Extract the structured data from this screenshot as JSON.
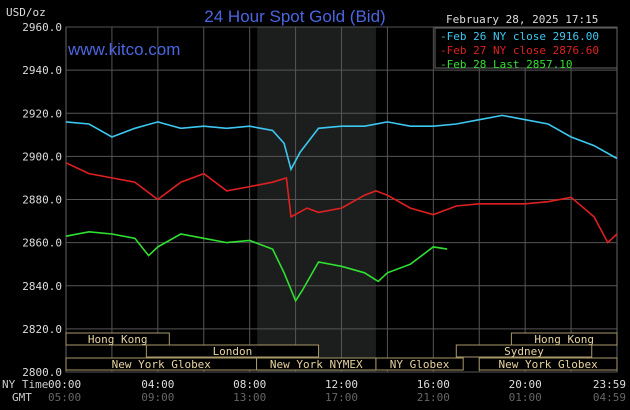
{
  "chart_data": {
    "type": "line",
    "title": "24 Hour Spot Gold (Bid)",
    "ylabel": "USD/oz",
    "website": "www.kitco.com",
    "timestamp": "February 28, 2025 17:15",
    "ylim": [
      2800,
      2960
    ],
    "yticks": [
      "2960.0",
      "2940.0",
      "2920.0",
      "2900.0",
      "2880.0",
      "2860.0",
      "2840.0",
      "2820.0",
      "2800.0"
    ],
    "ytick_values": [
      2960,
      2940,
      2920,
      2900,
      2880,
      2860,
      2840,
      2820,
      2800
    ],
    "xlim_hours": [
      0,
      24
    ],
    "x_row_labels": {
      "ny": "NY Time",
      "gmt": "GMT"
    },
    "xticks_ny": [
      "00:00",
      "04:00",
      "08:00",
      "12:00",
      "16:00",
      "20:00",
      "23:59"
    ],
    "xticks_gmt": [
      "05:00",
      "09:00",
      "13:00",
      "17:00",
      "21:00",
      "01:00",
      "04:59"
    ],
    "xtick_hours": [
      0,
      4,
      8,
      12,
      16,
      20,
      24
    ],
    "grid": true,
    "legend_placement": "top-right",
    "highlight_hours": [
      8.33,
      13.5
    ],
    "series": [
      {
        "name": "Feb 26 NY close 2916.00",
        "color": "#3cc8f0",
        "x": [
          0,
          1,
          2,
          3,
          4,
          5,
          6,
          7,
          8,
          9,
          9.5,
          9.8,
          10.2,
          11,
          12,
          13,
          14,
          15,
          16,
          17,
          18,
          19,
          20,
          21,
          22,
          23,
          24
        ],
        "y": [
          2916,
          2915,
          2909,
          2913,
          2916,
          2913,
          2914,
          2913,
          2914,
          2912,
          2906,
          2894,
          2902,
          2913,
          2914,
          2914,
          2916,
          2914,
          2914,
          2915,
          2917,
          2919,
          2917,
          2915,
          2909,
          2905,
          2899
        ]
      },
      {
        "name": "Feb 27 NY close 2876.60",
        "color": "#e02020",
        "x": [
          0,
          1,
          2,
          3,
          4,
          5,
          6,
          7,
          8,
          9,
          9.6,
          9.8,
          10.5,
          11,
          12,
          13,
          13.5,
          14,
          15,
          16,
          17,
          18,
          19,
          20,
          21,
          22,
          23,
          23.6,
          24
        ],
        "y": [
          2897,
          2892,
          2890,
          2888,
          2880,
          2888,
          2892,
          2884,
          2886,
          2888,
          2890,
          2872,
          2876,
          2874,
          2876,
          2882,
          2884,
          2882,
          2876,
          2873,
          2877,
          2878,
          2878,
          2878,
          2879,
          2881,
          2872,
          2860,
          2864
        ]
      },
      {
        "name": "Feb 28 Last 2857.10",
        "color": "#30e030",
        "x": [
          0,
          1,
          2,
          3,
          3.6,
          4,
          5,
          6,
          7,
          8,
          9,
          9.5,
          10,
          10.3,
          11,
          12,
          13,
          13.6,
          14,
          15,
          16,
          16.6
        ],
        "y": [
          2863,
          2865,
          2864,
          2862,
          2854,
          2858,
          2864,
          2862,
          2860,
          2861,
          2857,
          2846,
          2833,
          2838,
          2851,
          2849,
          2846,
          2842,
          2846,
          2850,
          2858,
          2857
        ]
      }
    ],
    "sessions": [
      {
        "label": "Hong Kong",
        "row": 0,
        "start": 0,
        "end": 4.5
      },
      {
        "label": "Hong Kong",
        "row": 0,
        "start": 19.4,
        "end": 24
      },
      {
        "label": "London",
        "row": 1,
        "start": 3.5,
        "end": 11
      },
      {
        "label": "Sydney",
        "row": 1,
        "start": 17,
        "end": 22.9
      },
      {
        "label": "New York Globex",
        "row": 2,
        "start": 0,
        "end": 8.3
      },
      {
        "label": "New York NYMEX",
        "row": 2,
        "start": 8.3,
        "end": 13.5
      },
      {
        "label": "NY Globex",
        "row": 2,
        "start": 13.5,
        "end": 17.3
      },
      {
        "label": "New York Globex",
        "row": 2,
        "start": 18,
        "end": 24
      }
    ]
  },
  "colors": {
    "title": "#4a66e0",
    "grid": "#555555",
    "session_text": "#e8d4a0",
    "session_border": "#a89868",
    "highlight": "#1c1e1e"
  }
}
